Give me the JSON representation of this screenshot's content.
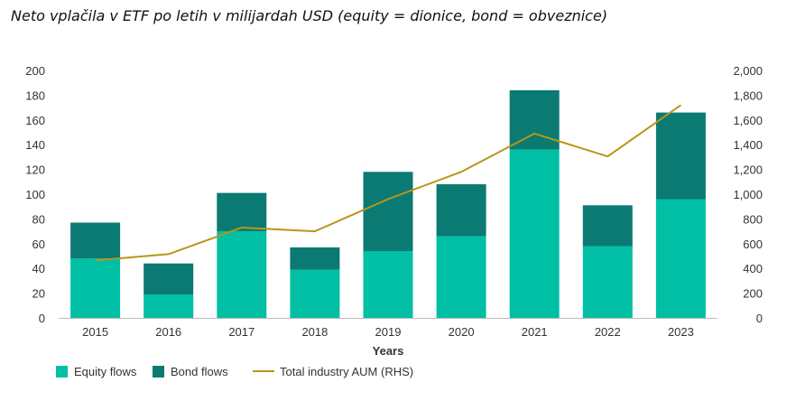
{
  "title": "Neto vplačila v ETF po letih v milijardah USD (equity = dionice, bond = obveznice)",
  "chart_data": {
    "type": "bar",
    "stacked": true,
    "categories": [
      "2015",
      "2016",
      "2017",
      "2018",
      "2019",
      "2020",
      "2021",
      "2022",
      "2023"
    ],
    "xlabel": "Years",
    "ylabel": "",
    "ylim": [
      0,
      200
    ],
    "yticks": [
      "0",
      "20",
      "40",
      "60",
      "80",
      "100",
      "120",
      "140",
      "160",
      "180",
      "200"
    ],
    "y2lim": [
      0,
      2000
    ],
    "y2ticks": [
      "0",
      "200",
      "400",
      "600",
      "800",
      "1,000",
      "1,200",
      "1,400",
      "1,600",
      "1,800",
      "2,000"
    ],
    "series": [
      {
        "name": "Equity flows",
        "kind": "bar",
        "axis": "left",
        "color": "#00bfa5",
        "values": [
          48,
          19,
          70,
          39,
          54,
          66,
          136,
          58,
          96
        ]
      },
      {
        "name": "Bond flows",
        "kind": "bar",
        "axis": "left",
        "color": "#0b7a72",
        "values": [
          29,
          25,
          31,
          18,
          64,
          42,
          48,
          33,
          70
        ]
      },
      {
        "name": "Total industry AUM (RHS)",
        "kind": "line",
        "axis": "right",
        "color": "#b89618",
        "values": [
          465,
          515,
          730,
          700,
          960,
          1180,
          1490,
          1305,
          1720
        ]
      }
    ],
    "grid": false,
    "legend": "bottom-left"
  }
}
